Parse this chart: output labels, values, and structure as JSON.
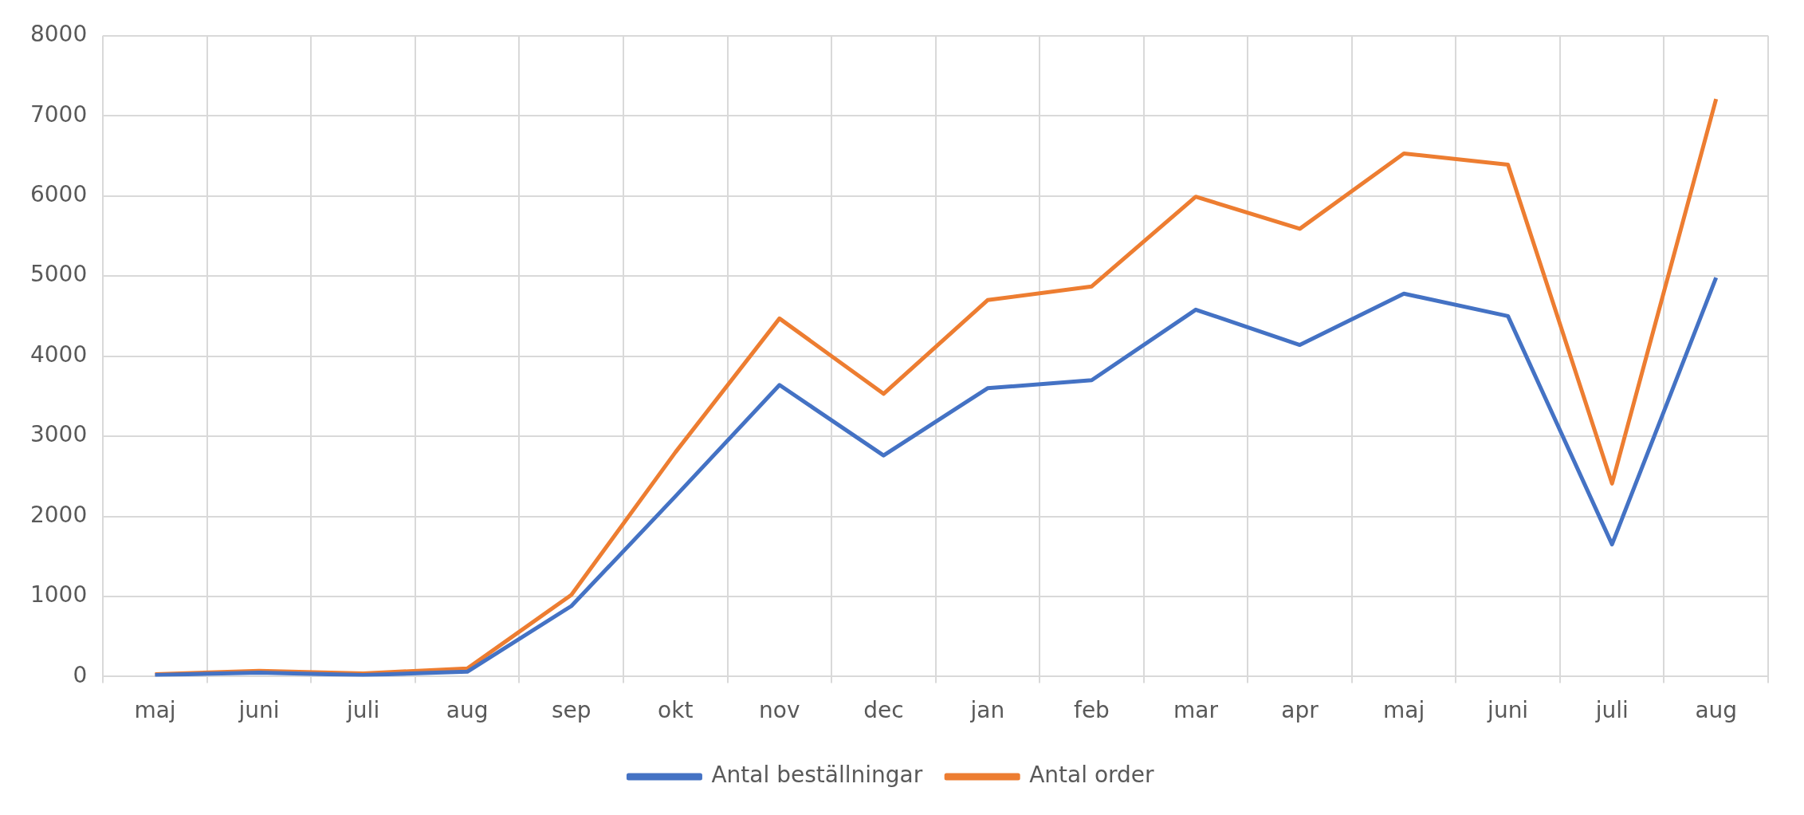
{
  "chart_data": {
    "type": "line",
    "categories": [
      "maj",
      "juni",
      "juli",
      "aug",
      "sep",
      "okt",
      "nov",
      "dec",
      "jan",
      "feb",
      "mar",
      "apr",
      "maj",
      "juni",
      "juli",
      "aug"
    ],
    "series": [
      {
        "name": "Antal beställningar",
        "color": "#4472c4",
        "values": [
          20,
          50,
          20,
          60,
          880,
          2250,
          3640,
          2760,
          3600,
          3700,
          4580,
          4140,
          4780,
          4500,
          1650,
          4980
        ]
      },
      {
        "name": "Antal order",
        "color": "#ed7d31",
        "values": [
          30,
          70,
          40,
          100,
          1020,
          2800,
          4470,
          3530,
          4700,
          4870,
          5990,
          5590,
          6530,
          6390,
          2410,
          7210
        ]
      }
    ],
    "ylim": [
      0,
      8000
    ],
    "yticks": [
      0,
      1000,
      2000,
      3000,
      4000,
      5000,
      6000,
      7000,
      8000
    ],
    "grid": true,
    "legend": "bottom",
    "marker": "none",
    "line_style": "solid"
  }
}
